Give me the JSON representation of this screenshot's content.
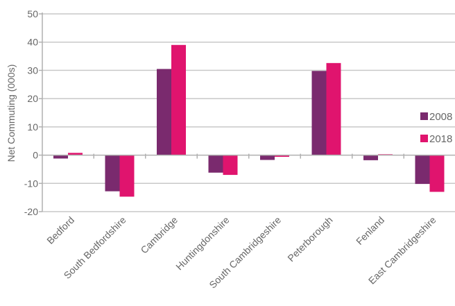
{
  "chart_data": {
    "type": "bar",
    "title": "",
    "xlabel": "",
    "ylabel": "Net Commuting (000s)",
    "ylim": [
      -20,
      50
    ],
    "yticks": [
      -20,
      -10,
      0,
      10,
      20,
      30,
      40,
      50
    ],
    "grid": true,
    "legend_position": "right",
    "categories": [
      "Bedford",
      "South Bedfordshire",
      "Cambridge",
      "Huntingdonshire",
      "South Cambridgeshire",
      "Peterborough",
      "Fenland",
      "East Cambridgeshire"
    ],
    "series": [
      {
        "name": "2008",
        "color": "#7a2a6e",
        "values": [
          -1.2,
          -12.8,
          30.5,
          -6.2,
          -1.7,
          29.8,
          -1.8,
          -10.2
        ]
      },
      {
        "name": "2018",
        "color": "#e0146e",
        "values": [
          0.8,
          -14.7,
          39.0,
          -7.0,
          -0.6,
          32.6,
          0.3,
          -13.0
        ]
      }
    ]
  }
}
